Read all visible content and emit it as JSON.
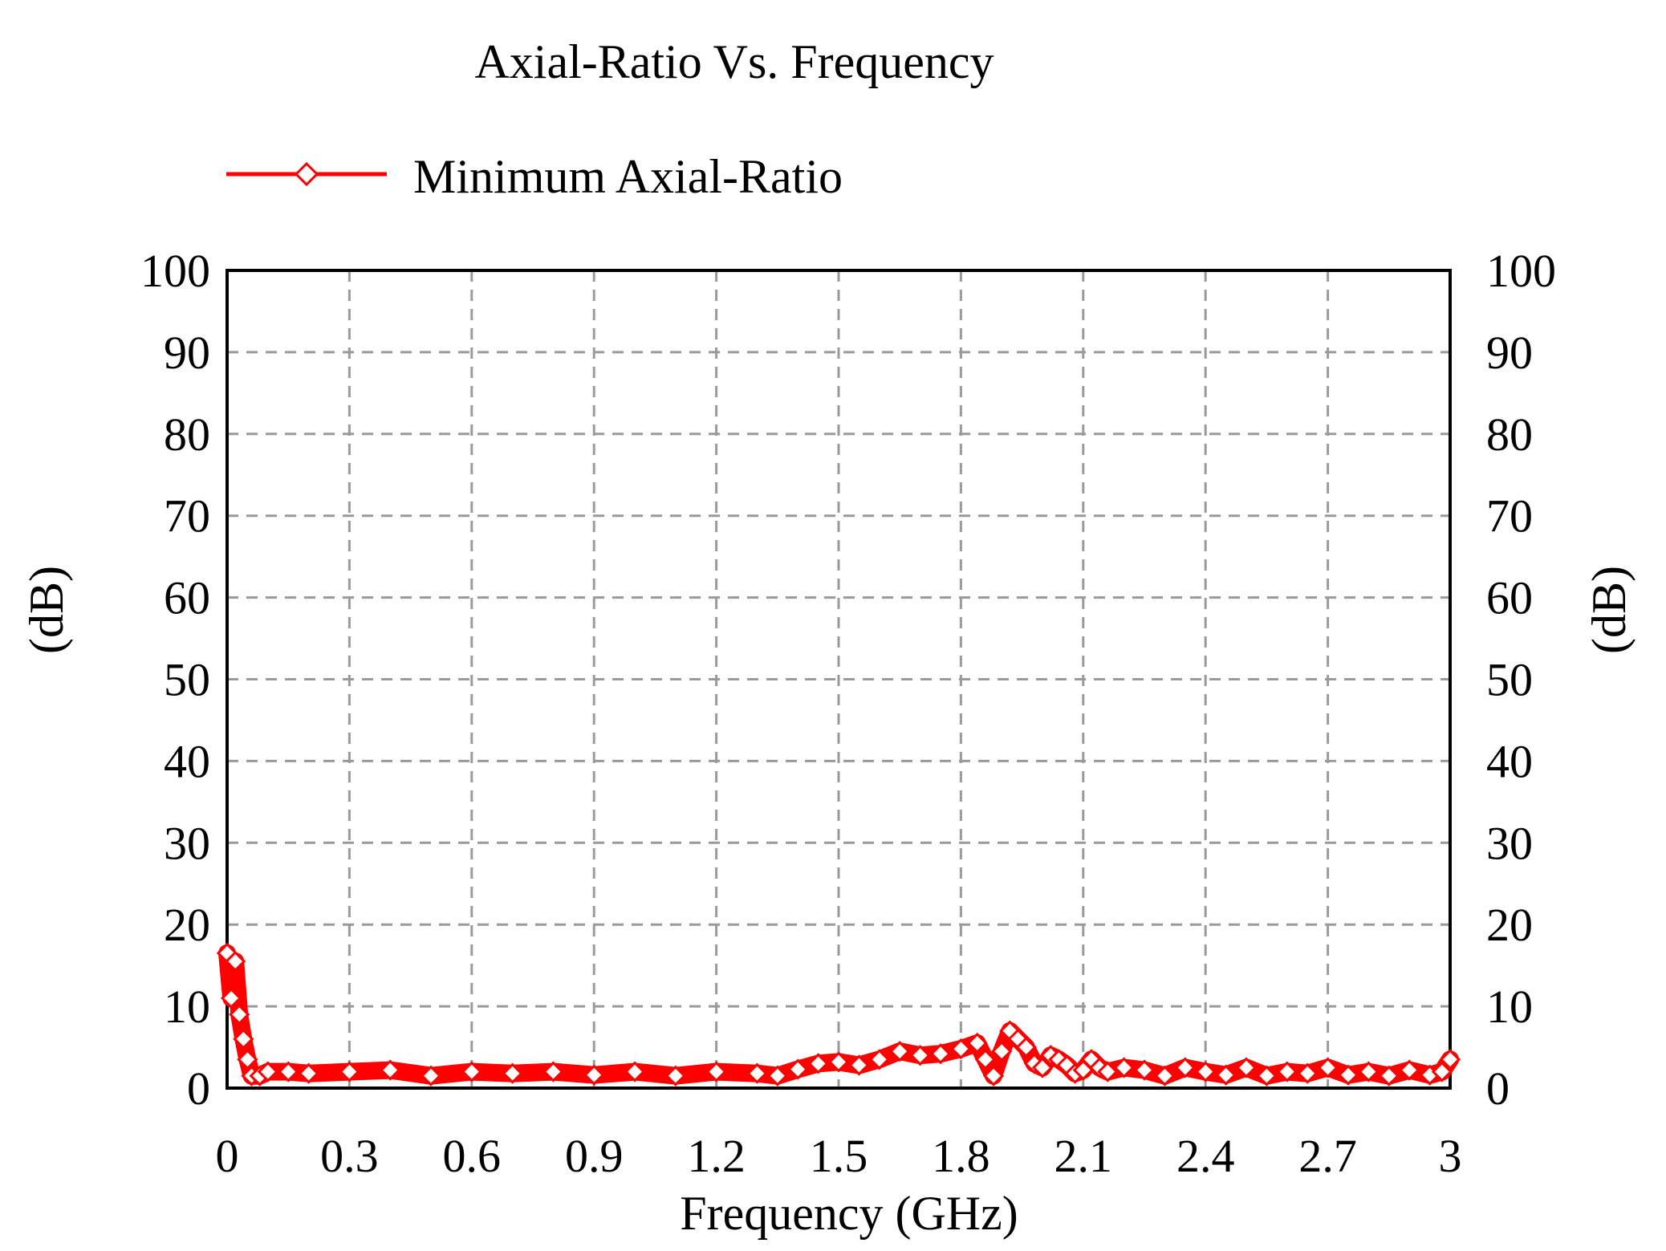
{
  "chart_data": {
    "type": "line",
    "title": "Axial-Ratio Vs. Frequency",
    "xlabel": "Frequency (GHz)",
    "ylabel_left": "(dB)",
    "ylabel_right": "(dB)",
    "xlim": [
      0,
      3
    ],
    "ylim": [
      0,
      100
    ],
    "x_ticks": [
      "0",
      "0.3",
      "0.6",
      "0.9",
      "1.2",
      "1.5",
      "1.8",
      "2.1",
      "2.4",
      "2.7",
      "3"
    ],
    "y_ticks": [
      "0",
      "10",
      "20",
      "30",
      "40",
      "50",
      "60",
      "70",
      "80",
      "90",
      "100"
    ],
    "grid": true,
    "legend_position": "top-left",
    "series": [
      {
        "name": "Minimum Axial-Ratio",
        "color": "#ff0000",
        "marker": "diamond",
        "x": [
          0.0,
          0.01,
          0.02,
          0.03,
          0.04,
          0.05,
          0.06,
          0.08,
          0.1,
          0.15,
          0.2,
          0.3,
          0.4,
          0.5,
          0.6,
          0.7,
          0.8,
          0.9,
          1.0,
          1.1,
          1.2,
          1.3,
          1.35,
          1.4,
          1.45,
          1.5,
          1.55,
          1.6,
          1.65,
          1.7,
          1.75,
          1.8,
          1.84,
          1.86,
          1.88,
          1.9,
          1.92,
          1.94,
          1.96,
          1.98,
          2.0,
          2.02,
          2.04,
          2.06,
          2.08,
          2.1,
          2.12,
          2.14,
          2.16,
          2.2,
          2.25,
          2.3,
          2.35,
          2.4,
          2.45,
          2.5,
          2.55,
          2.6,
          2.65,
          2.7,
          2.75,
          2.8,
          2.85,
          2.9,
          2.95,
          2.98,
          3.0
        ],
        "y": [
          16.5,
          11,
          15.5,
          9,
          6,
          3.5,
          1.5,
          1.5,
          2,
          2,
          1.8,
          2,
          2.2,
          1.5,
          2,
          1.8,
          2,
          1.6,
          2,
          1.5,
          2,
          1.8,
          1.5,
          2.3,
          3,
          3.2,
          2.8,
          3.5,
          4.5,
          4,
          4.2,
          4.8,
          5.5,
          3.5,
          1.5,
          4.5,
          7,
          6,
          5,
          3,
          2.5,
          4,
          3.5,
          2.8,
          1.8,
          2.2,
          3.5,
          2.5,
          2,
          2.5,
          2.2,
          1.5,
          2.5,
          2,
          1.6,
          2.5,
          1.5,
          2,
          1.8,
          2.5,
          1.6,
          2,
          1.5,
          2.2,
          1.6,
          2,
          3.5
        ]
      }
    ]
  }
}
